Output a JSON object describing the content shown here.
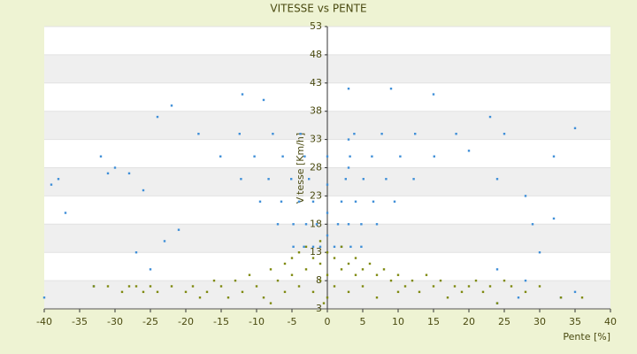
{
  "chart_data": {
    "type": "scatter",
    "title": "VITESSE vs PENTE",
    "x_label": "Pente [%]",
    "y_label": "Vitesse [Km/h]",
    "xlim": [
      -40,
      40
    ],
    "xticks": [
      -40,
      -35,
      -30,
      -25,
      -20,
      -15,
      -10,
      -5,
      0,
      5,
      10,
      15,
      20,
      25,
      30,
      35,
      40
    ],
    "ylim": [
      3,
      53
    ],
    "yticks": [
      3,
      8,
      13,
      18,
      23,
      28,
      33,
      38,
      43,
      48,
      53
    ],
    "grid": true,
    "series": [
      {
        "color": "#3f8fd8",
        "x": [
          -1.0,
          -1.5,
          -2.0,
          -2.6,
          -3.2,
          -3.8,
          1.0,
          1.5,
          2.0,
          2.6,
          3.2,
          3.8,
          -2.0,
          -3.0,
          -4.0,
          -5.1,
          -6.3,
          -7.7,
          2.0,
          3.0,
          4.0,
          5.1,
          6.3,
          7.7,
          -3.3,
          -4.8,
          -6.5,
          -8.3,
          -10.3,
          -12.4,
          3.3,
          4.8,
          6.5,
          8.3,
          10.3,
          12.4,
          -4.8,
          -7.0,
          -9.5,
          -12.2,
          -15.1,
          -18.2,
          4.8,
          7.0,
          9.5,
          12.2,
          15.1,
          18.2,
          -39,
          -38,
          -37,
          -32,
          -31,
          -30,
          -28,
          -26,
          -24,
          -22,
          -21,
          -23,
          -25,
          -27,
          -33,
          -40,
          -12,
          -9,
          3,
          9,
          15,
          23,
          25,
          35,
          32,
          20,
          24,
          28,
          29,
          32,
          30,
          24,
          28,
          33,
          35,
          27,
          24,
          3,
          3,
          0,
          0,
          0,
          0
        ],
        "values": [
          14,
          18,
          22,
          26,
          30,
          34,
          14,
          18,
          22,
          26,
          30,
          34,
          14,
          18,
          22,
          26,
          30,
          34,
          14,
          18,
          22,
          26,
          30,
          34,
          14,
          18,
          22,
          26,
          30,
          34,
          14,
          18,
          22,
          26,
          30,
          34,
          14,
          18,
          22,
          26,
          30,
          34,
          14,
          18,
          22,
          26,
          30,
          34,
          25,
          26,
          20,
          30,
          27,
          28,
          27,
          24,
          37,
          39,
          17,
          15,
          10,
          13,
          7,
          5,
          41,
          40,
          42,
          42,
          41,
          37,
          34,
          35,
          30,
          31,
          26,
          23,
          18,
          19,
          13,
          10,
          8,
          5,
          6,
          5,
          4,
          33,
          28,
          30,
          25,
          20,
          16
        ]
      },
      {
        "color": "#7f8a10",
        "x": [
          -33,
          -31,
          -29,
          -28,
          -27,
          -26,
          -25,
          -24,
          -22,
          -20,
          -19,
          -18,
          -17,
          -16,
          -15,
          -14,
          -13,
          -12,
          -11,
          -10,
          -9,
          -8,
          -8,
          -7,
          -6,
          -6,
          -5,
          -5,
          -4,
          -4,
          -3,
          -3,
          -2,
          -2,
          -1,
          -1,
          0,
          0,
          1,
          1,
          2,
          2,
          3,
          3,
          4,
          4,
          5,
          5,
          6,
          7,
          7,
          8,
          9,
          10,
          10,
          11,
          12,
          13,
          14,
          15,
          16,
          17,
          18,
          19,
          20,
          21,
          22,
          23,
          25,
          26,
          28,
          30,
          33,
          36,
          24,
          -0.5,
          0,
          -1
        ],
        "values": [
          7,
          7,
          6,
          7,
          7,
          6,
          7,
          6,
          7,
          6,
          7,
          5,
          6,
          8,
          7,
          5,
          8,
          6,
          9,
          7,
          5,
          10,
          4,
          8,
          11,
          6,
          12,
          9,
          13,
          7,
          14,
          10,
          12,
          6,
          11,
          15,
          9,
          13,
          12,
          7,
          14,
          10,
          11,
          6,
          12,
          9,
          10,
          7,
          11,
          9,
          5,
          10,
          8,
          9,
          6,
          7,
          8,
          6,
          9,
          7,
          8,
          5,
          7,
          6,
          7,
          8,
          6,
          7,
          8,
          7,
          6,
          7,
          5,
          5,
          4,
          4,
          5,
          8
        ]
      }
    ]
  }
}
